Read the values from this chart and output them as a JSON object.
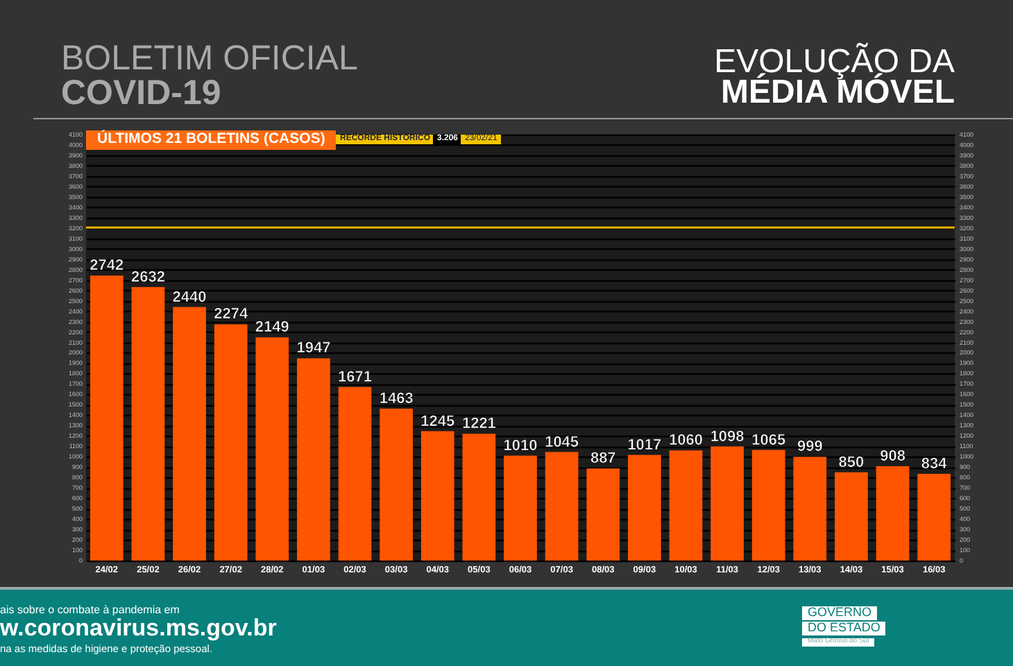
{
  "chart_data": {
    "type": "bar",
    "title": "BOLETIM OFICIAL",
    "subtitle": "COVID-19",
    "categories": [
      "24/02",
      "25/02",
      "26/02",
      "27/02",
      "28/02",
      "01/03",
      "02/03",
      "03/03",
      "04/03",
      "05/03",
      "06/03",
      "07/03",
      "08/03",
      "09/03",
      "10/03",
      "11/03",
      "12/03",
      "13/03",
      "14/03",
      "15/03",
      "16/03"
    ],
    "values": [
      2742,
      2632,
      2440,
      2274,
      2149,
      1947,
      1671,
      1463,
      1245,
      1221,
      1010,
      1045,
      887,
      1017,
      1060,
      1098,
      1065,
      999,
      850,
      908,
      834
    ],
    "color": "#ff5500",
    "data_labels": true,
    "grid": "y",
    "ylim": [
      0,
      4100
    ],
    "yticks": [
      0,
      100,
      200,
      300,
      400,
      500,
      600,
      700,
      800,
      900,
      1000,
      1100,
      1200,
      1300,
      1400,
      1500,
      1600,
      1700,
      1800,
      1900,
      2000,
      2100,
      2200,
      2300,
      2400,
      2500,
      2600,
      2700,
      2800,
      2900,
      3000,
      3100,
      3200,
      3300,
      3400,
      3500,
      3600,
      3700,
      3800,
      3900,
      4000,
      4100
    ],
    "y2lim": [
      0,
      4100
    ],
    "y2ticks": [
      0,
      100,
      200,
      300,
      400,
      500,
      600,
      700,
      800,
      900,
      1000,
      1100,
      1200,
      1300,
      1400,
      1500,
      1600,
      1700,
      1800,
      1900,
      2000,
      2100,
      2200,
      2300,
      2400,
      2500,
      2600,
      2700,
      2800,
      2900,
      3000,
      3100,
      3200,
      3300,
      3400,
      3500,
      3600,
      3700,
      3800,
      3900,
      4000,
      4100
    ],
    "ref_lines": [
      {
        "axis": "y",
        "value": 3206,
        "color": "#f0b400"
      }
    ],
    "annotations": [
      "EVOLUÇÃO DA",
      "MÉDIA MÓVEL",
      "ÚLTIMOS 21 BOLETINS (CASOS)",
      "RECORDE HISTÓRICO",
      "3.206",
      "23/02/21",
      "ais sobre o combate à pandemia em",
      "w.coronavirus.ms.gov.br",
      "na as medidas de higiene e proteção pessoal.",
      "GOVERNO",
      "DO ESTADO",
      "Mato Grosso do Sul"
    ]
  }
}
